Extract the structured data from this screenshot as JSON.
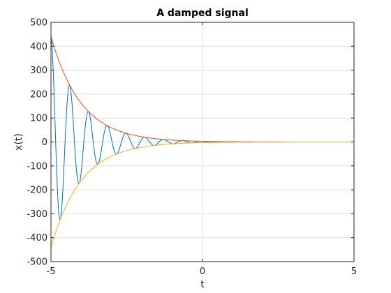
{
  "chart_data": {
    "type": "line",
    "title": "A damped signal",
    "xlabel": "t",
    "ylabel": "x(t)",
    "xlim": [
      -5,
      5
    ],
    "ylim": [
      -500,
      500
    ],
    "xticks": [
      -5,
      0,
      5
    ],
    "yticks": [
      -500,
      -400,
      -300,
      -200,
      -100,
      0,
      100,
      200,
      300,
      400,
      500
    ],
    "grid": true,
    "legend": "none",
    "x_range": [
      -5,
      5
    ],
    "series": [
      {
        "color": "#0072BD",
        "description_values": {
          "x": [
            -5.0,
            -4.69,
            -4.38,
            -4.06,
            -3.75,
            -3.44,
            -3.13,
            -2.81,
            -2.5,
            -2.19,
            -1.88,
            -1.56,
            -1.25,
            -0.94,
            -0.63,
            -0.31,
            0.0,
            1.0,
            2.0,
            5.0
          ],
          "y": [
            441,
            -345,
            270,
            -211,
            165,
            -129,
            101,
            -79,
            62,
            -48,
            38,
            -29,
            23,
            -18,
            14,
            -11,
            9,
            0,
            0,
            0
          ]
        }
      },
      {
        "color": "#D95319",
        "x": [
          -5,
          -4.5,
          -4,
          -3.5,
          -3,
          -2.5,
          -2,
          -1.5,
          -1,
          -0.5,
          0,
          1,
          2,
          3,
          5
        ],
        "y": [
          441,
          267,
          162,
          98,
          60,
          36,
          22,
          13,
          8,
          5,
          3,
          1,
          0.4,
          0.1,
          0
        ]
      },
      {
        "color": "#EDB120",
        "x": [
          -5,
          -4.5,
          -4,
          -3.5,
          -3,
          -2.5,
          -2,
          -1.5,
          -1,
          -0.5,
          0,
          1,
          2,
          3,
          5
        ],
        "y": [
          -441,
          -267,
          -162,
          -98,
          -60,
          -36,
          -22,
          -13,
          -8,
          -5,
          -3,
          -1,
          -0.4,
          -0.1,
          0
        ]
      }
    ]
  }
}
